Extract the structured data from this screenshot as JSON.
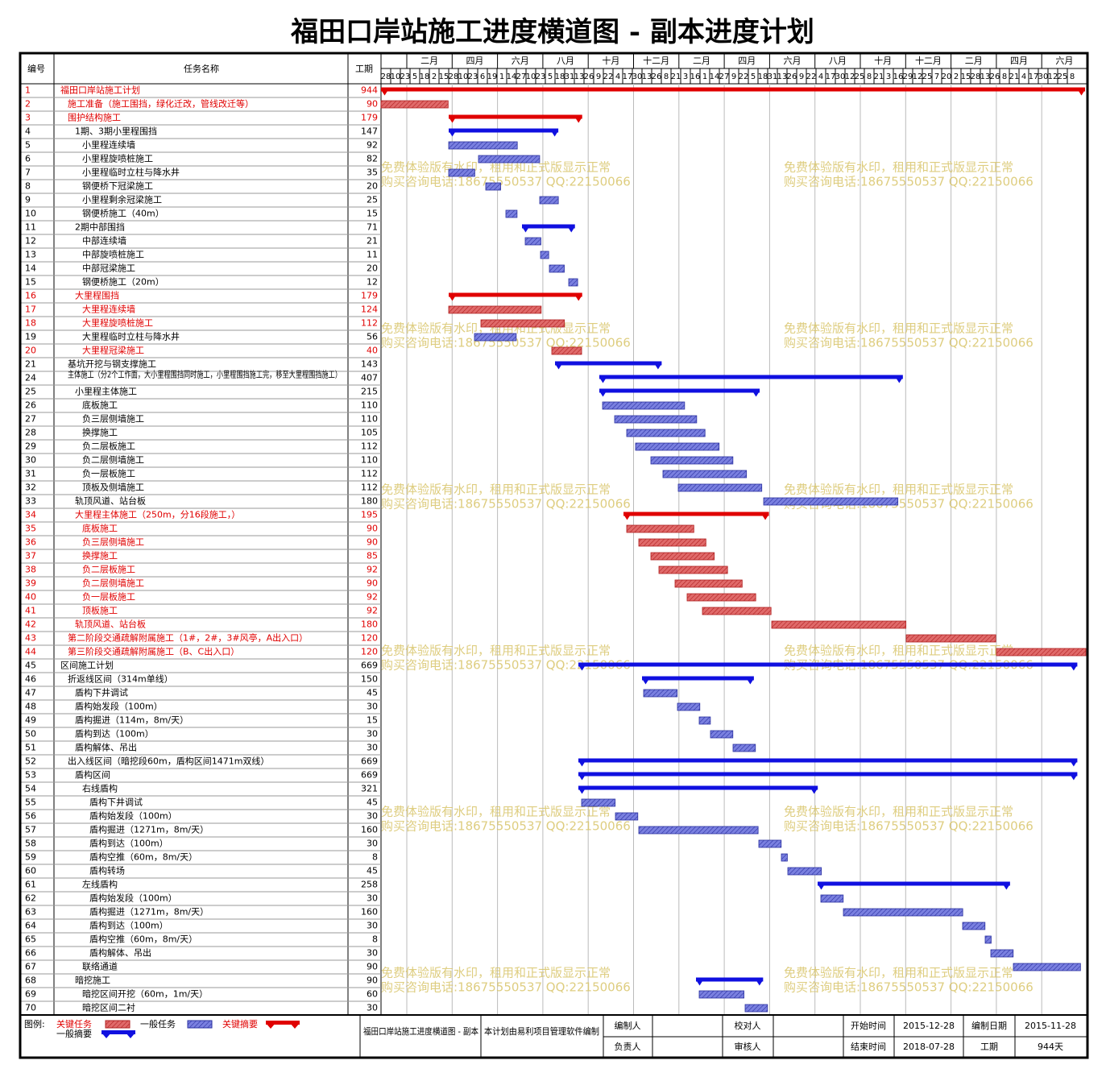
{
  "title": "福田口岸站施工进度横道图 - 副本进度计划",
  "header": {
    "id": "编号",
    "name": "任务名称",
    "duration": "工期"
  },
  "timeline": {
    "months": [
      "二月",
      "四月",
      "六月",
      "八月",
      "十月",
      "十二月",
      "二月",
      "四月",
      "六月",
      "八月",
      "十月",
      "十二月",
      "二月",
      "四月",
      "六月"
    ],
    "days": [
      "28",
      "10",
      "23",
      "5",
      "18",
      "2",
      "15",
      "28",
      "10",
      "23",
      "6",
      "19",
      "1",
      "14",
      "27",
      "10",
      "23",
      "5",
      "18",
      "31",
      "13",
      "26",
      "9",
      "22",
      "4",
      "17",
      "30",
      "13",
      "26",
      "8",
      "21",
      "3",
      "16",
      "1",
      "14",
      "27",
      "9",
      "22",
      "5",
      "18",
      "31",
      "13",
      "26",
      "9",
      "22",
      "4",
      "17",
      "30",
      "12",
      "25",
      "8",
      "21",
      "3",
      "16",
      "29",
      "12",
      "25",
      "7",
      "20",
      "2",
      "15",
      "28",
      "13",
      "26",
      "8",
      "21",
      "4",
      "17",
      "30",
      "12",
      "25",
      "8"
    ]
  },
  "rows": [
    {
      "id": 1,
      "name": "福田口岸站施工计划",
      "duration": 944
    },
    {
      "id": 2,
      "name": "施工准备（施工围挡，绿化迁改，管线改迁等）",
      "duration": 90
    },
    {
      "id": 3,
      "name": "围护结构施工",
      "duration": 179
    },
    {
      "id": 4,
      "name": "1期、3期小里程围挡",
      "duration": 147
    },
    {
      "id": 5,
      "name": "小里程连续墙",
      "duration": 92
    },
    {
      "id": 6,
      "name": "小里程旋喷桩施工",
      "duration": 82
    },
    {
      "id": 7,
      "name": "小里程临时立柱与降水井",
      "duration": 35
    },
    {
      "id": 8,
      "name": "钢便桥下冠梁施工",
      "duration": 20
    },
    {
      "id": 9,
      "name": "小里程剩余冠梁施工",
      "duration": 25
    },
    {
      "id": 10,
      "name": "钢便桥施工（40m）",
      "duration": 15
    },
    {
      "id": 11,
      "name": "2期中部围挡",
      "duration": 71
    },
    {
      "id": 12,
      "name": "中部连续墙",
      "duration": 21
    },
    {
      "id": 13,
      "name": "中部旋喷桩施工",
      "duration": 11
    },
    {
      "id": 14,
      "name": "中部冠梁施工",
      "duration": 20
    },
    {
      "id": 15,
      "name": "钢便桥施工（20m）",
      "duration": 12
    },
    {
      "id": 16,
      "name": "大里程围挡",
      "duration": 179
    },
    {
      "id": 17,
      "name": "大里程连续墙",
      "duration": 124
    },
    {
      "id": 18,
      "name": "大里程旋喷桩施工",
      "duration": 112
    },
    {
      "id": 19,
      "name": "大里程临时立柱与降水井",
      "duration": 56
    },
    {
      "id": 20,
      "name": "大里程冠梁施工",
      "duration": 40
    },
    {
      "id": 21,
      "name": "基坑开挖与钢支撑施工",
      "duration": 143
    },
    {
      "id": 24,
      "name": "主体施工（分2个工作面，大小里程围挡同时施工，小里程围挡施工完，移至大里程围挡施工）",
      "duration": 407
    },
    {
      "id": 25,
      "name": "小里程主体施工",
      "duration": 215
    },
    {
      "id": 26,
      "name": "底板施工",
      "duration": 110
    },
    {
      "id": 27,
      "name": "负三层侧墙施工",
      "duration": 110
    },
    {
      "id": 28,
      "name": "换撑施工",
      "duration": 105
    },
    {
      "id": 29,
      "name": "负二层板施工",
      "duration": 112
    },
    {
      "id": 30,
      "name": "负二层侧墙施工",
      "duration": 110
    },
    {
      "id": 31,
      "name": "负一层板施工",
      "duration": 112
    },
    {
      "id": 32,
      "name": "顶板及侧墙施工",
      "duration": 112
    },
    {
      "id": 33,
      "name": "轨顶风道、站台板",
      "duration": 180
    },
    {
      "id": 34,
      "name": "大里程主体施工（250m，分16段施工，）",
      "duration": 195
    },
    {
      "id": 35,
      "name": "底板施工",
      "duration": 90
    },
    {
      "id": 36,
      "name": "负三层侧墙施工",
      "duration": 90
    },
    {
      "id": 37,
      "name": "换撑施工",
      "duration": 85
    },
    {
      "id": 38,
      "name": "负二层板施工",
      "duration": 92
    },
    {
      "id": 39,
      "name": "负二层侧墙施工",
      "duration": 90
    },
    {
      "id": 40,
      "name": "负一层板施工",
      "duration": 92
    },
    {
      "id": 41,
      "name": "顶板施工",
      "duration": 92
    },
    {
      "id": 42,
      "name": "轨顶风道、站台板",
      "duration": 180
    },
    {
      "id": 43,
      "name": "第二阶段交通疏解附属施工（1#，2#，3#风亭，A出入口）",
      "duration": 120
    },
    {
      "id": 44,
      "name": "第三阶段交通疏解附属施工（B、C出入口）",
      "duration": 120
    },
    {
      "id": 45,
      "name": "区间施工计划",
      "duration": 669
    },
    {
      "id": 46,
      "name": "折返线区间（314m单线）",
      "duration": 150
    },
    {
      "id": 47,
      "name": "盾构下井调试",
      "duration": 45
    },
    {
      "id": 48,
      "name": "盾构始发段（100m）",
      "duration": 30
    },
    {
      "id": 49,
      "name": "盾构掘进（114m，8m/天）",
      "duration": 15
    },
    {
      "id": 50,
      "name": "盾构到达（100m）",
      "duration": 30
    },
    {
      "id": 51,
      "name": "盾构解体、吊出",
      "duration": 30
    },
    {
      "id": 52,
      "name": "出入线区间（暗挖段60m，盾构区间1471m双线）",
      "duration": 669
    },
    {
      "id": 53,
      "name": "盾构区间",
      "duration": 669
    },
    {
      "id": 54,
      "name": "右线盾构",
      "duration": 321
    },
    {
      "id": 55,
      "name": "盾构下井调试",
      "duration": 45
    },
    {
      "id": 56,
      "name": "盾构始发段（100m）",
      "duration": 30
    },
    {
      "id": 57,
      "name": "盾构掘进（1271m，8m/天）",
      "duration": 160
    },
    {
      "id": 58,
      "name": "盾构到达（100m）",
      "duration": 30
    },
    {
      "id": 59,
      "name": "盾构空推（60m，8m/天）",
      "duration": 8
    },
    {
      "id": 60,
      "name": "盾构转场",
      "duration": 45
    },
    {
      "id": 61,
      "name": "左线盾构",
      "duration": 258
    },
    {
      "id": 62,
      "name": "盾构始发段（100m）",
      "duration": 30
    },
    {
      "id": 63,
      "name": "盾构掘进（1271m，8m/天）",
      "duration": 160
    },
    {
      "id": 64,
      "name": "盾构到达（100m）",
      "duration": 30
    },
    {
      "id": 65,
      "name": "盾构空推（60m，8m/天）",
      "duration": 8
    },
    {
      "id": 66,
      "name": "盾构解体、吊出",
      "duration": 30
    },
    {
      "id": 67,
      "name": "联络通道",
      "duration": 90
    },
    {
      "id": 68,
      "name": "暗挖施工",
      "duration": 90
    },
    {
      "id": 69,
      "name": "暗挖区间开挖（60m，1m/天）",
      "duration": 60
    },
    {
      "id": 70,
      "name": "暗挖区间二衬",
      "duration": 30
    }
  ],
  "watermark": [
    "免费体验版有水印，租用和正式版显示正常",
    "购买咨询电话:18675550537 QQ:22150066"
  ],
  "legend": {
    "label": "图例:",
    "items": [
      "关键任务",
      "一般任务",
      "关键摘要",
      "一般摘要"
    ]
  },
  "footer": {
    "project": "福田口岸站施工进度横道图 - 副本",
    "note": "本计划由易利项目管理软件编制",
    "editor": "编制人",
    "checker": "校对人",
    "start_label": "开始时间",
    "start": "2015-12-28",
    "date_label": "编制日期",
    "date": "2015-11-28",
    "owner": "负责人",
    "reviewer": "审核人",
    "end_label": "结束时间",
    "end": "2018-07-28",
    "period_label": "工期",
    "period": "944天"
  }
}
